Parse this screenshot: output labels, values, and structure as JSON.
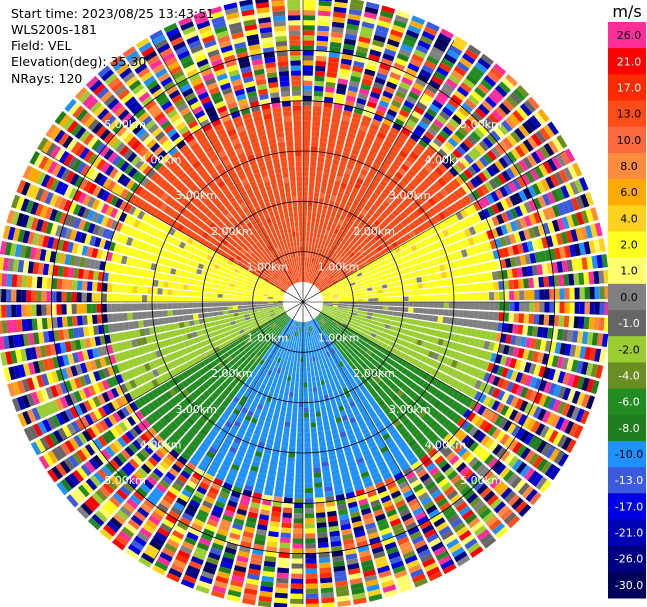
{
  "header": {
    "start_time": "Start time: 2023/08/25 13:43:51",
    "instrument": "WLS200s-181",
    "field": "Field: VEL",
    "elevation": "Elevation(deg): 35.30",
    "nrays": "NRays: 120"
  },
  "colorbar": {
    "unit": "m/s",
    "levels": [
      {
        "label": "26.0",
        "color": "#ff2e9a"
      },
      {
        "label": "21.0",
        "color": "#ff0000"
      },
      {
        "label": "17.0",
        "color": "#ff2a00"
      },
      {
        "label": "13.0",
        "color": "#ff4d1a"
      },
      {
        "label": "10.0",
        "color": "#ff6a3c"
      },
      {
        "label": "8.0",
        "color": "#ff8c3c"
      },
      {
        "label": "6.0",
        "color": "#ffaa00"
      },
      {
        "label": "4.0",
        "color": "#ffd21e"
      },
      {
        "label": "2.0",
        "color": "#ffff1e"
      },
      {
        "label": "1.0",
        "color": "#ffff6e"
      },
      {
        "label": "0.0",
        "color": "#808080"
      },
      {
        "label": "-1.0",
        "color": "#666666"
      },
      {
        "label": "-2.0",
        "color": "#9acd32"
      },
      {
        "label": "-4.0",
        "color": "#6b8e23"
      },
      {
        "label": "-6.0",
        "color": "#228b22"
      },
      {
        "label": "-8.0",
        "color": "#1e7e1e"
      },
      {
        "label": "-10.0",
        "color": "#1e90ff"
      },
      {
        "label": "-13.0",
        "color": "#3c5adc"
      },
      {
        "label": "-17.0",
        "color": "#0000e6"
      },
      {
        "label": "-21.0",
        "color": "#0000b4"
      },
      {
        "label": "-26.0",
        "color": "#000080"
      },
      {
        "label": "-30.0",
        "color": "#00005a"
      }
    ]
  },
  "chart_data": {
    "type": "heatmap",
    "projection": "ppi",
    "n_rays": 120,
    "field": "VEL",
    "units": "m/s",
    "value_range": [
      -30.0,
      26.0
    ],
    "range_rings_km": [
      1.0,
      2.0,
      3.0,
      4.0,
      5.0
    ],
    "ring_labels": [
      "1.00km",
      "2.00km",
      "3.00km",
      "4.00km",
      "5.00km"
    ],
    "max_range_km": 6.0,
    "spokes_deg": [
      0,
      30,
      60,
      90,
      120,
      150,
      180,
      210,
      240,
      270,
      300,
      330
    ],
    "data_range_km": [
      0.4,
      3.9
    ],
    "velocity_sectors": [
      {
        "azimuth_from_deg": 300,
        "azimuth_to_deg": 60,
        "velocity_ms": 13.0
      },
      {
        "azimuth_from_deg": 60,
        "azimuth_to_deg": 90,
        "velocity_ms": 2.0
      },
      {
        "azimuth_from_deg": 90,
        "azimuth_to_deg": 100,
        "velocity_ms": 0.0
      },
      {
        "azimuth_from_deg": 100,
        "azimuth_to_deg": 120,
        "velocity_ms": -2.0
      },
      {
        "azimuth_from_deg": 120,
        "azimuth_to_deg": 145,
        "velocity_ms": -6.0
      },
      {
        "azimuth_from_deg": 145,
        "azimuth_to_deg": 215,
        "velocity_ms": -10.0
      },
      {
        "azimuth_from_deg": 215,
        "azimuth_to_deg": 240,
        "velocity_ms": -6.0
      },
      {
        "azimuth_from_deg": 240,
        "azimuth_to_deg": 260,
        "velocity_ms": -2.0
      },
      {
        "azimuth_from_deg": 260,
        "azimuth_to_deg": 270,
        "velocity_ms": 0.0
      },
      {
        "azimuth_from_deg": 270,
        "azimuth_to_deg": 300,
        "velocity_ms": 2.0
      }
    ],
    "outer_region": "noise (random colors) beyond ~3.9 km"
  }
}
